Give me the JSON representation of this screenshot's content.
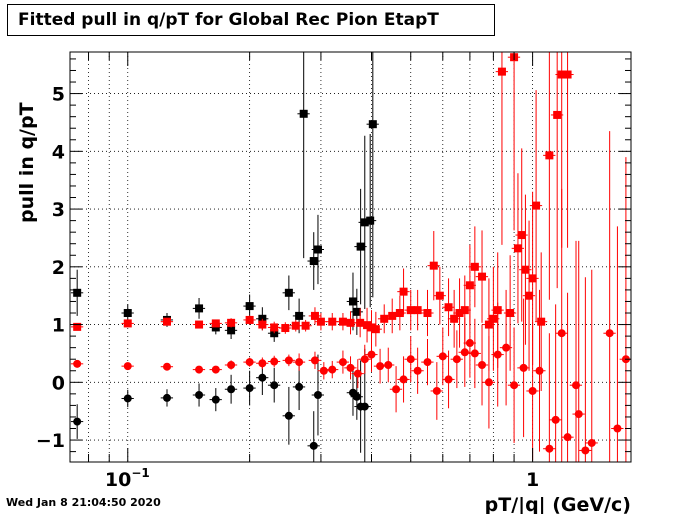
{
  "chart_data": {
    "type": "scatter",
    "title": "Fitted pull in q/pT for Global Rec Pion EtapT",
    "xlabel": "pT/|q| (GeV/c)",
    "ylabel": "pull in q/pT",
    "x_scale": "log",
    "xlim": [
      0.072,
      1.75
    ],
    "ylim": [
      -1.38,
      5.72
    ],
    "grid": true,
    "y_ticks": [
      -1,
      0,
      1,
      2,
      3,
      4,
      5
    ],
    "y_tick_labels": [
      "−1",
      "0",
      "1",
      "2",
      "3",
      "4",
      "5"
    ],
    "x_major_ticks": [
      {
        "value": 0.1,
        "label": "10",
        "sup": "−1"
      },
      {
        "value": 1,
        "label": "1",
        "sup": ""
      }
    ],
    "series": [
      {
        "color": "#000000",
        "marker": "square",
        "points": [
          [
            0.075,
            1.55,
            0.4
          ],
          [
            0.1,
            1.2,
            0.15
          ],
          [
            0.125,
            1.08,
            0.12
          ],
          [
            0.15,
            1.28,
            0.18
          ],
          [
            0.165,
            0.95,
            0.12
          ],
          [
            0.18,
            0.9,
            0.15
          ],
          [
            0.2,
            1.32,
            0.2
          ],
          [
            0.215,
            1.1,
            0.2
          ],
          [
            0.23,
            0.85,
            0.15
          ],
          [
            0.25,
            1.55,
            0.3
          ],
          [
            0.265,
            1.15,
            0.3
          ],
          [
            0.272,
            4.65,
            2.5
          ],
          [
            0.288,
            2.1,
            0.5
          ],
          [
            0.295,
            2.3,
            0.6
          ],
          [
            0.36,
            1.4,
            0.5
          ],
          [
            0.368,
            1.22,
            0.4
          ],
          [
            0.376,
            2.35,
            1.0
          ],
          [
            0.385,
            2.77,
            1.5
          ],
          [
            0.397,
            2.8,
            1.5
          ],
          [
            0.403,
            4.47,
            3.0
          ]
        ]
      },
      {
        "color": "#000000",
        "marker": "circle",
        "points": [
          [
            0.075,
            -0.68,
            0.3
          ],
          [
            0.1,
            -0.28,
            0.15
          ],
          [
            0.125,
            -0.27,
            0.15
          ],
          [
            0.15,
            -0.22,
            0.2
          ],
          [
            0.165,
            -0.3,
            0.2
          ],
          [
            0.18,
            -0.12,
            0.25
          ],
          [
            0.2,
            -0.1,
            0.3
          ],
          [
            0.215,
            0.08,
            0.3
          ],
          [
            0.23,
            -0.05,
            0.3
          ],
          [
            0.25,
            -0.58,
            0.5
          ],
          [
            0.265,
            -0.08,
            0.4
          ],
          [
            0.288,
            -1.1,
            0.6
          ],
          [
            0.295,
            -0.22,
            0.7
          ],
          [
            0.36,
            -0.18,
            0.4
          ],
          [
            0.368,
            -0.25,
            0.4
          ],
          [
            0.376,
            -0.42,
            0.8
          ],
          [
            0.385,
            -0.42,
            1.0
          ]
        ]
      },
      {
        "color": "#ff0000",
        "marker": "square",
        "points": [
          [
            0.075,
            0.96,
            0.05
          ],
          [
            0.1,
            1.02,
            0.05
          ],
          [
            0.125,
            1.05,
            0.05
          ],
          [
            0.15,
            1.0,
            0.05
          ],
          [
            0.165,
            1.02,
            0.05
          ],
          [
            0.18,
            1.03,
            0.08
          ],
          [
            0.2,
            1.08,
            0.08
          ],
          [
            0.215,
            1.0,
            0.1
          ],
          [
            0.23,
            0.95,
            0.1
          ],
          [
            0.245,
            0.94,
            0.1
          ],
          [
            0.26,
            0.98,
            0.1
          ],
          [
            0.275,
            0.98,
            0.1
          ],
          [
            0.29,
            1.15,
            0.15
          ],
          [
            0.3,
            1.05,
            0.15
          ],
          [
            0.32,
            1.05,
            0.15
          ],
          [
            0.34,
            1.05,
            0.15
          ],
          [
            0.355,
            1.03,
            0.2
          ],
          [
            0.375,
            1.03,
            0.25
          ],
          [
            0.39,
            0.99,
            0.3
          ],
          [
            0.4,
            0.95,
            0.3
          ],
          [
            0.41,
            0.92,
            0.3
          ],
          [
            0.43,
            1.1,
            0.25
          ],
          [
            0.45,
            1.15,
            0.3
          ],
          [
            0.47,
            1.2,
            0.3
          ],
          [
            0.48,
            1.57,
            0.4
          ],
          [
            0.5,
            1.25,
            0.35
          ],
          [
            0.52,
            1.25,
            0.35
          ],
          [
            0.55,
            1.2,
            0.4
          ],
          [
            0.57,
            2.02,
            0.6
          ],
          [
            0.59,
            1.5,
            0.5
          ],
          [
            0.62,
            1.3,
            0.5
          ],
          [
            0.64,
            1.1,
            0.5
          ],
          [
            0.66,
            1.2,
            0.6
          ],
          [
            0.68,
            1.25,
            0.6
          ],
          [
            0.7,
            1.68,
            0.7
          ],
          [
            0.72,
            2.0,
            0.7
          ],
          [
            0.75,
            1.83,
            0.8
          ],
          [
            0.78,
            1.0,
            0.8
          ],
          [
            0.8,
            1.1,
            0.9
          ],
          [
            0.82,
            1.25,
            1.0
          ],
          [
            0.84,
            5.38,
            3.0
          ],
          [
            0.88,
            1.2,
            1.0
          ],
          [
            0.9,
            5.63,
            3.0
          ],
          [
            0.92,
            2.32,
            1.3
          ],
          [
            0.94,
            2.55,
            1.5
          ],
          [
            0.96,
            1.95,
            1.3
          ],
          [
            0.98,
            1.5,
            1.3
          ],
          [
            1.0,
            1.8,
            1.5
          ],
          [
            1.02,
            3.06,
            2.0
          ],
          [
            1.05,
            1.05,
            1.2
          ],
          [
            1.1,
            3.93,
            2.5
          ],
          [
            1.15,
            4.63,
            3.0
          ],
          [
            1.18,
            5.33,
            3.0
          ],
          [
            1.22,
            5.33,
            3.0
          ]
        ]
      },
      {
        "color": "#ff0000",
        "marker": "circle",
        "points": [
          [
            0.075,
            0.32,
            0.05
          ],
          [
            0.1,
            0.28,
            0.05
          ],
          [
            0.125,
            0.27,
            0.05
          ],
          [
            0.15,
            0.22,
            0.05
          ],
          [
            0.165,
            0.22,
            0.05
          ],
          [
            0.18,
            0.3,
            0.08
          ],
          [
            0.2,
            0.35,
            0.08
          ],
          [
            0.215,
            0.33,
            0.1
          ],
          [
            0.23,
            0.36,
            0.1
          ],
          [
            0.25,
            0.38,
            0.1
          ],
          [
            0.265,
            0.35,
            0.15
          ],
          [
            0.29,
            0.38,
            0.15
          ],
          [
            0.305,
            0.2,
            0.15
          ],
          [
            0.32,
            0.22,
            0.15
          ],
          [
            0.34,
            0.35,
            0.2
          ],
          [
            0.355,
            0.25,
            0.2
          ],
          [
            0.37,
            0.15,
            0.25
          ],
          [
            0.385,
            0.4,
            0.25
          ],
          [
            0.4,
            0.48,
            0.3
          ],
          [
            0.42,
            0.28,
            0.3
          ],
          [
            0.44,
            0.3,
            0.3
          ],
          [
            0.46,
            -0.12,
            0.4
          ],
          [
            0.48,
            0.05,
            0.4
          ],
          [
            0.5,
            0.4,
            0.4
          ],
          [
            0.52,
            0.2,
            0.4
          ],
          [
            0.55,
            0.35,
            0.4
          ],
          [
            0.58,
            -0.15,
            0.5
          ],
          [
            0.6,
            0.45,
            0.5
          ],
          [
            0.62,
            0.05,
            0.5
          ],
          [
            0.65,
            0.4,
            0.5
          ],
          [
            0.68,
            0.52,
            0.6
          ],
          [
            0.7,
            0.68,
            0.6
          ],
          [
            0.72,
            0.5,
            0.6
          ],
          [
            0.75,
            0.3,
            0.7
          ],
          [
            0.78,
            0.0,
            0.8
          ],
          [
            0.82,
            0.48,
            0.9
          ],
          [
            0.86,
            0.6,
            1.0
          ],
          [
            0.9,
            -0.05,
            1.0
          ],
          [
            0.95,
            0.25,
            1.2
          ],
          [
            1.0,
            -0.15,
            1.2
          ],
          [
            1.04,
            0.2,
            1.4
          ],
          [
            1.1,
            -1.15,
            2.0
          ],
          [
            1.14,
            -0.65,
            2.0
          ],
          [
            1.18,
            0.85,
            2.5
          ],
          [
            1.22,
            -0.95,
            2.5
          ],
          [
            1.28,
            -0.05,
            2.5
          ],
          [
            1.3,
            -0.55,
            3.0
          ],
          [
            1.35,
            -1.18,
            3.0
          ],
          [
            1.4,
            -1.05,
            3.0
          ],
          [
            1.55,
            0.85,
            3.5
          ],
          [
            1.62,
            -0.8,
            3.5
          ],
          [
            1.7,
            0.4,
            3.5
          ]
        ]
      }
    ]
  },
  "footer": "Wed Jan  8 21:04:50 2020"
}
